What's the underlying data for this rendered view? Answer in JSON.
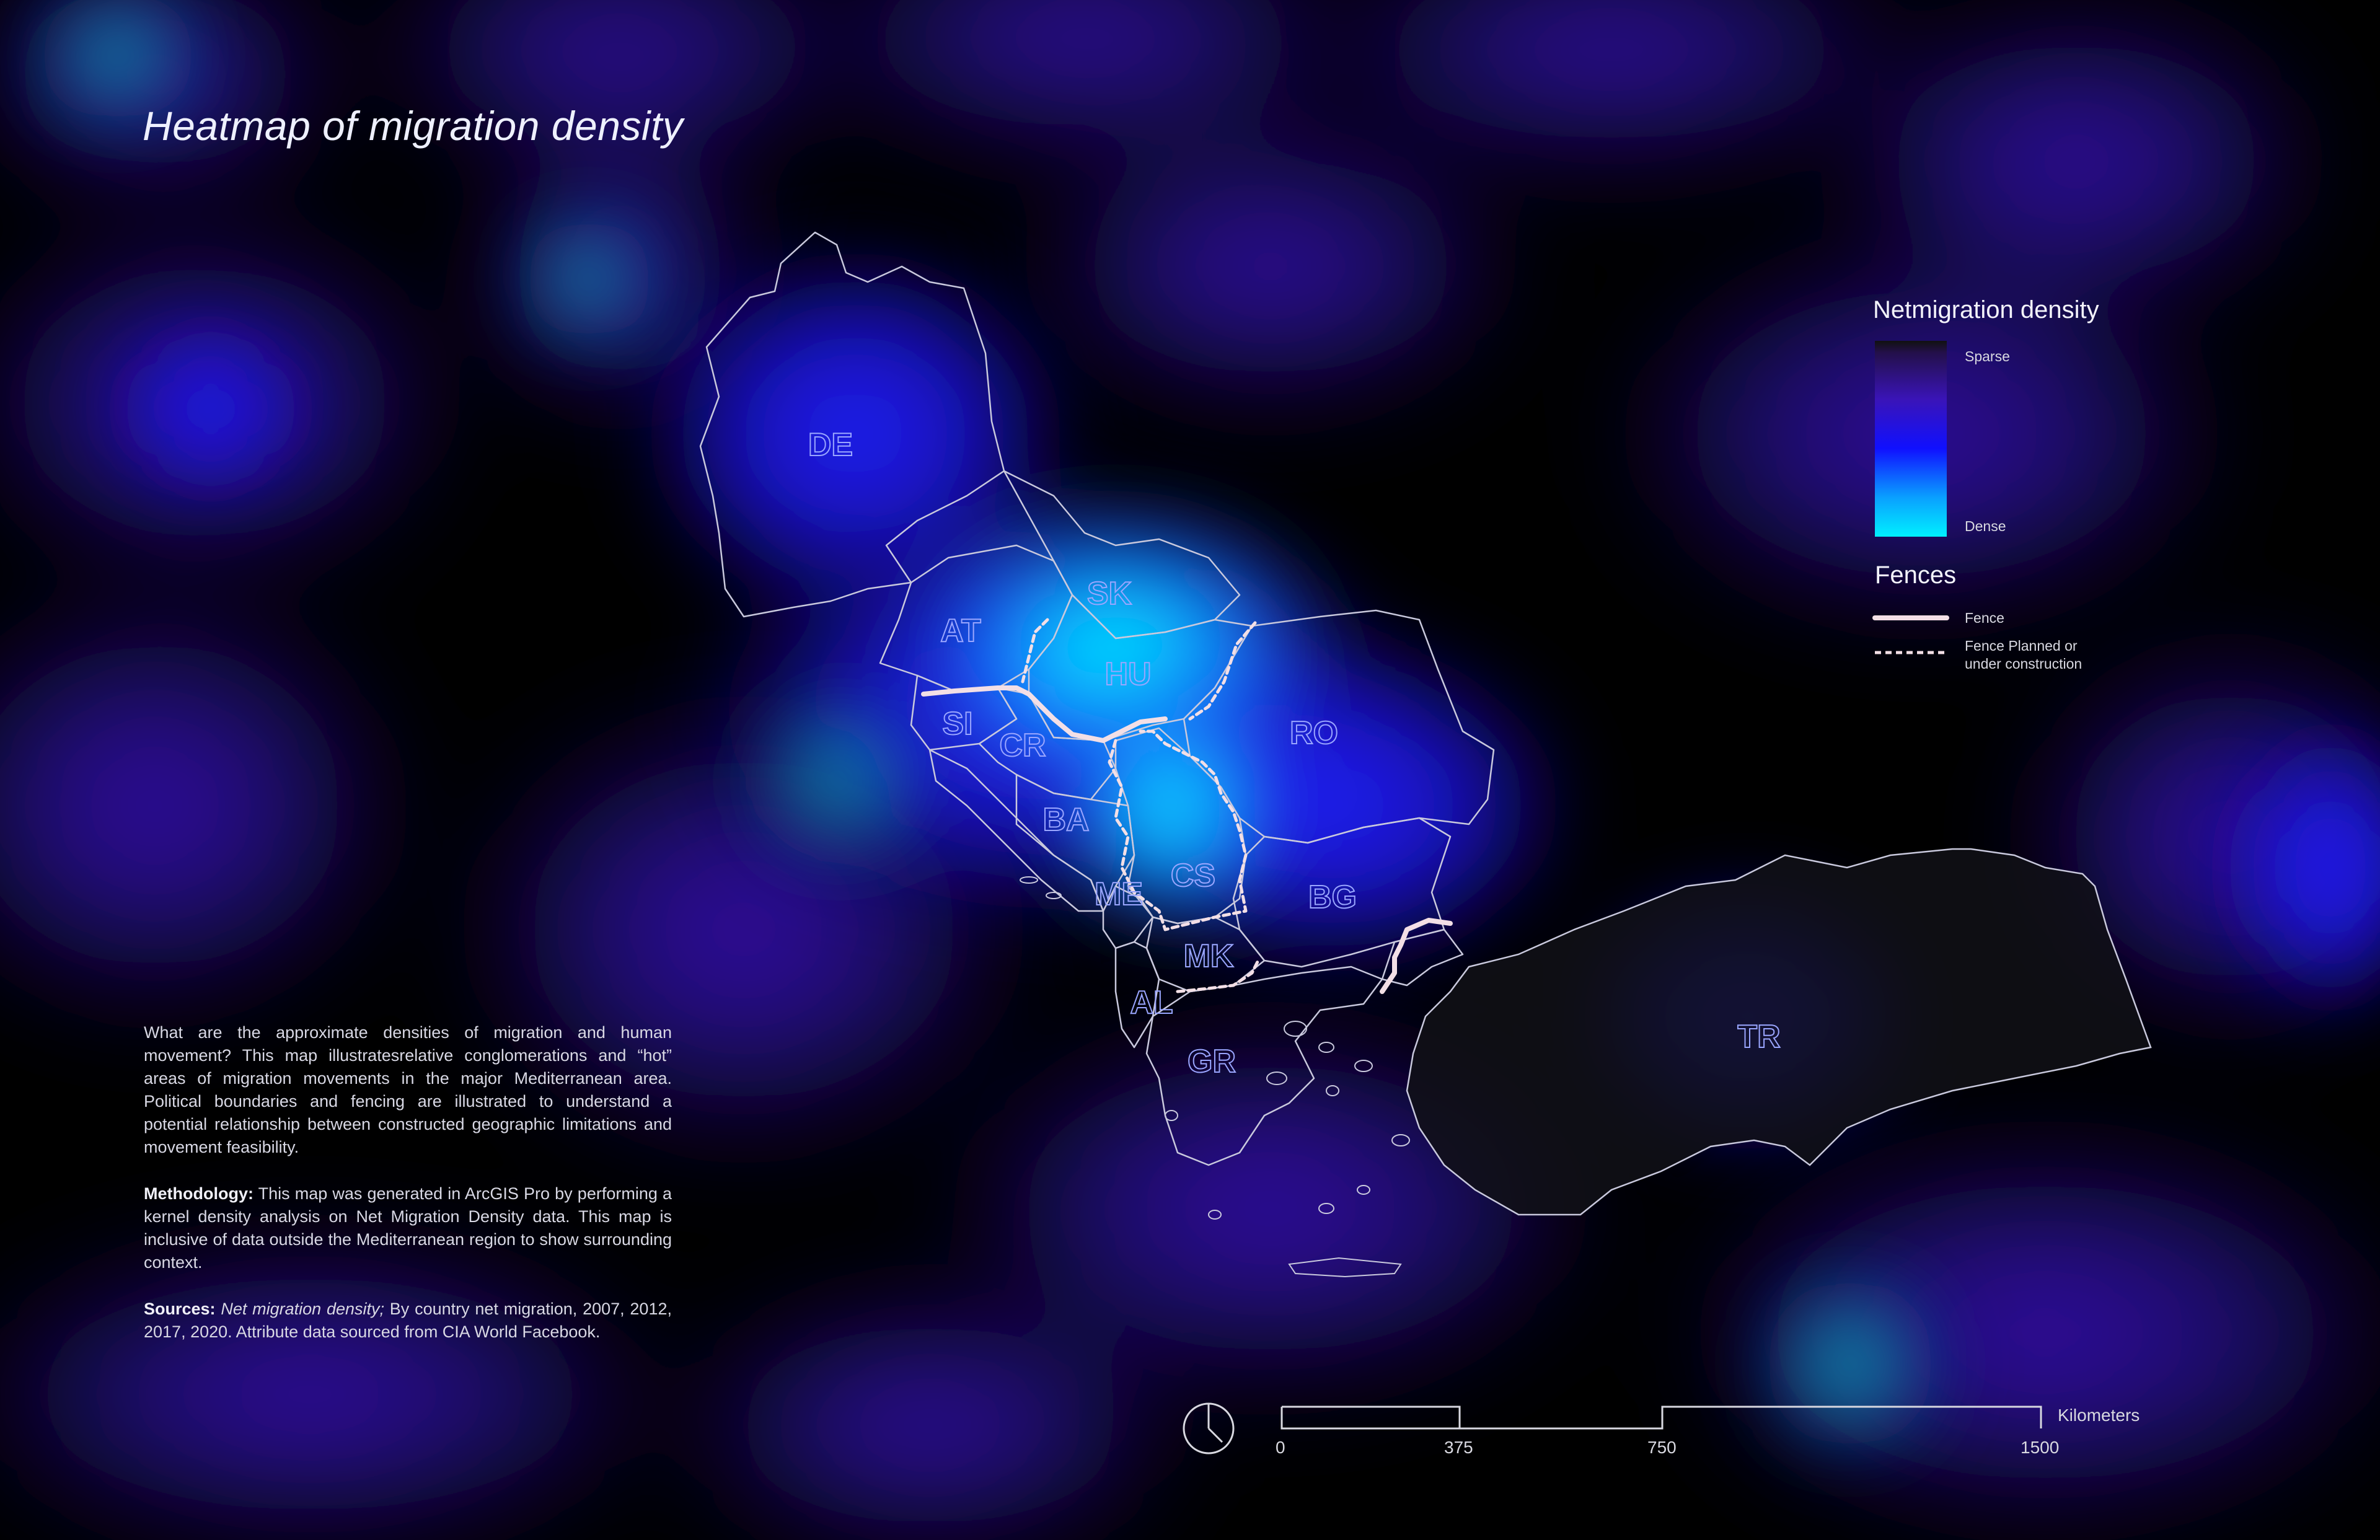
{
  "title": "Heatmap of migration density",
  "description": {
    "intro": "What are the approximate densities of migration and human movement? This map illustratesrelative conglomerations and “hot” areas of migration movements in the major Mediterranean area. Political boundaries and fencing are illustrated to understand a potential relationship between constructed geographic limitations and movement feasibility.",
    "methodology_label": "Methodology:",
    "methodology_text": " This map was generated in ArcGIS Pro by performing a kernel density analysis on Net Migration Density data. This map is inclusive of data outside the Mediterranean region to show surrounding context.",
    "sources_label": "Sources:",
    "sources_italic": " Net migration density;",
    "sources_text": " By country net migration, 2007, 2012, 2017, 2020.  Attribute data sourced from CIA World Facebook."
  },
  "legend": {
    "density_title": "Netmigration density",
    "sparse_label": "Sparse",
    "dense_label": "Dense",
    "fences_title": "Fences",
    "fence_label": "Fence",
    "fence_planned_label_1": "Fence Planned or",
    "fence_planned_label_2": "under construction",
    "colors": {
      "sparse": "#2a0a6e",
      "mid": "#1a10ff",
      "dense": "#00e8ff",
      "fence": "#f3dfe6"
    }
  },
  "countries": [
    "DE",
    "AT",
    "SK",
    "HU",
    "RO",
    "SI",
    "CR",
    "BA",
    "CS",
    "ME",
    "BG",
    "MK",
    "AL",
    "GR",
    "TR"
  ],
  "scale_bar": {
    "ticks": [
      "0",
      "375",
      "750",
      "1500"
    ],
    "unit": "Kilometers"
  }
}
